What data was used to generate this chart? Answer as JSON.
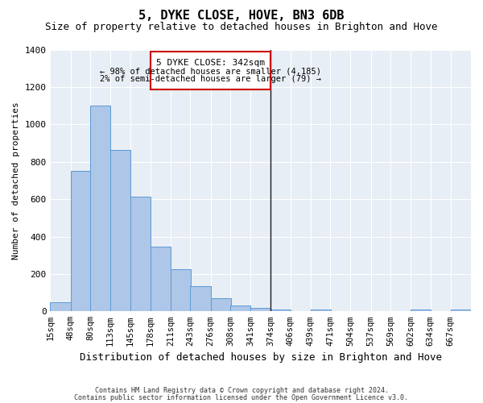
{
  "title": "5, DYKE CLOSE, HOVE, BN3 6DB",
  "subtitle": "Size of property relative to detached houses in Brighton and Hove",
  "xlabel": "Distribution of detached houses by size in Brighton and Hove",
  "ylabel": "Number of detached properties",
  "footer_line1": "Contains HM Land Registry data © Crown copyright and database right 2024.",
  "footer_line2": "Contains public sector information licensed under the Open Government Licence v3.0.",
  "bins": [
    15,
    48,
    80,
    113,
    145,
    178,
    211,
    243,
    276,
    308,
    341,
    374,
    406,
    439,
    471,
    504,
    537,
    569,
    602,
    634,
    667
  ],
  "bin_width": 33,
  "counts": [
    50,
    750,
    1100,
    865,
    615,
    345,
    225,
    135,
    70,
    30,
    20,
    12,
    0,
    10,
    0,
    0,
    0,
    0,
    10,
    0,
    10
  ],
  "bar_color": "#aec6e8",
  "bar_edge_color": "#5b9bd5",
  "vline_x": 341,
  "vline_color": "#1a1a1a",
  "annotation_title": "5 DYKE CLOSE: 342sqm",
  "annotation_line1": "← 98% of detached houses are smaller (4,185)",
  "annotation_line2": "2% of semi-detached houses are larger (79) →",
  "annotation_box_color": "#ffffff",
  "annotation_border_color": "#cc0000",
  "ylim": [
    0,
    1400
  ],
  "yticks": [
    0,
    200,
    400,
    600,
    800,
    1000,
    1200,
    1400
  ],
  "background_color": "#e8eef5",
  "title_fontsize": 11,
  "subtitle_fontsize": 9,
  "xlabel_fontsize": 9,
  "ylabel_fontsize": 8,
  "tick_fontsize": 7.5,
  "annotation_fontsize": 8,
  "footer_fontsize": 6
}
